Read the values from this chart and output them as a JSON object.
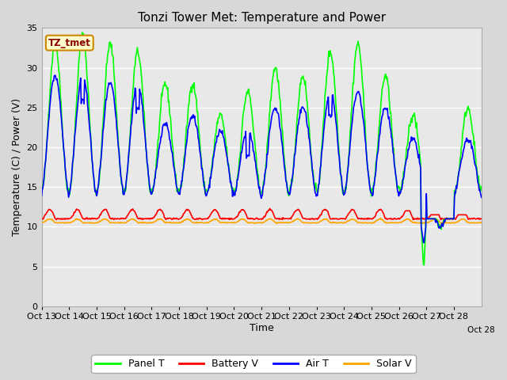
{
  "title": "Tonzi Tower Met: Temperature and Power",
  "xlabel": "Time",
  "ylabel": "Temperature (C) / Power (V)",
  "ylim": [
    0,
    35
  ],
  "yticks": [
    0,
    5,
    10,
    15,
    20,
    25,
    30,
    35
  ],
  "x_labels": [
    "Oct 13",
    "Oct 14",
    "Oct 15",
    "Oct 16",
    "Oct 17",
    "Oct 18",
    "Oct 19",
    "Oct 20",
    "Oct 21",
    "Oct 22",
    "Oct 23",
    "Oct 24",
    "Oct 25",
    "Oct 26",
    "Oct 27",
    "Oct 28"
  ],
  "legend_entries": [
    "Panel T",
    "Battery V",
    "Air T",
    "Solar V"
  ],
  "legend_colors": [
    "#00ff00",
    "#ff0000",
    "#0000ff",
    "#ffa500"
  ],
  "watermark_text": "TZ_tmet",
  "watermark_bg": "#ffffcc",
  "watermark_border": "#cc8800",
  "watermark_text_color": "#880000",
  "fig_bg_color": "#d8d8d8",
  "plot_bg_color": "#e8e8e8",
  "grid_color": "#ffffff",
  "panel_T_color": "#00ff00",
  "battery_V_color": "#ff0000",
  "air_T_color": "#0000ff",
  "solar_V_color": "#ffa500",
  "line_width": 1.2,
  "figsize": [
    6.4,
    4.8
  ],
  "dpi": 100
}
